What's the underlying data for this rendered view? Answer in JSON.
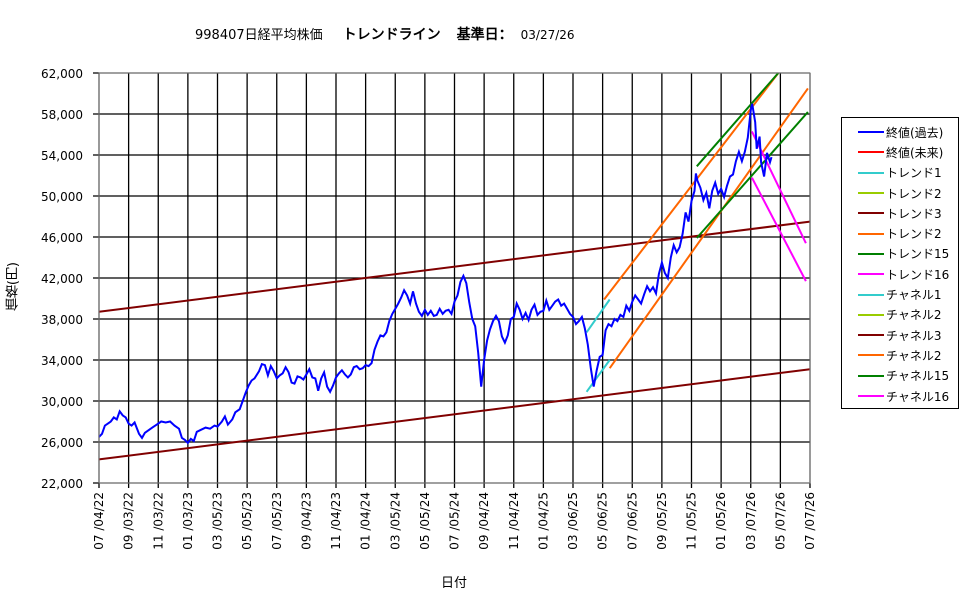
{
  "title": {
    "code_name": "998407日経平均株価",
    "chart_kind": "トレンドライン",
    "base_date_label": "基準日：",
    "base_date": "03/27/26"
  },
  "axes": {
    "ylabel": "価格(円)",
    "xlabel": "日付"
  },
  "colors": {
    "close_past": "#0000FF",
    "close_future": "#FF0000",
    "trend1": "#33CCCC",
    "trend2_lime": "#99CC00",
    "trend3": "#800000",
    "trend2_orange": "#FF6600",
    "trend15": "#008000",
    "trend16": "#FF00FF",
    "grid": "#000000",
    "plot_border": "#808080"
  },
  "legend": {
    "items": [
      {
        "label": "終値(過去)",
        "color": "#0000FF"
      },
      {
        "label": "終値(未来)",
        "color": "#FF0000"
      },
      {
        "label": "トレンド1",
        "color": "#33CCCC"
      },
      {
        "label": "トレンド2",
        "color": "#99CC00"
      },
      {
        "label": "トレンド3",
        "color": "#800000"
      },
      {
        "label": "トレンド2",
        "color": "#FF6600"
      },
      {
        "label": "トレンド15",
        "color": "#008000"
      },
      {
        "label": "トレンド16",
        "color": "#FF00FF"
      },
      {
        "label": "チャネル1",
        "color": "#33CCCC"
      },
      {
        "label": "チャネル2",
        "color": "#99CC00"
      },
      {
        "label": "チャネル3",
        "color": "#800000"
      },
      {
        "label": "チャネル2",
        "color": "#FF6600"
      },
      {
        "label": "チャネル15",
        "color": "#008000"
      },
      {
        "label": "チャネル16",
        "color": "#FF00FF"
      }
    ]
  },
  "chart_data": {
    "type": "line",
    "title": "998407日経平均株価 トレンドライン 基準日： 03/27/26",
    "xlabel": "日付",
    "ylabel": "価格(円)",
    "ylim": [
      22000,
      62000
    ],
    "yticks": [
      22000,
      26000,
      30000,
      34000,
      38000,
      42000,
      46000,
      50000,
      54000,
      58000,
      62000
    ],
    "ytick_labels": [
      "22,000",
      "26,000",
      "30,000",
      "34,000",
      "38,000",
      "42,000",
      "46,000",
      "50,000",
      "54,000",
      "58,000",
      "62,000"
    ],
    "categories": [
      "07/04/22",
      "09/03/22",
      "11/03/22",
      "01/03/23",
      "03/05/23",
      "05/05/23",
      "07/05/23",
      "09/04/23",
      "11/04/23",
      "01/04/24",
      "03/05/24",
      "05/05/24",
      "07/05/24",
      "09/04/24",
      "11/04/24",
      "01/04/25",
      "03/06/25",
      "05/06/25",
      "07/06/25",
      "09/05/25",
      "11/05/25",
      "01/05/26",
      "03/07/26",
      "05/07/26",
      "07/07/26"
    ],
    "grid": true,
    "legend_position": "right",
    "x_index_unit": "index of category tick (0 = 07/04/22, 24 = 07/07/26)",
    "series": [
      {
        "name": "終値(過去)",
        "color": "#0000FF",
        "width": 2,
        "points": [
          [
            0,
            26500
          ],
          [
            0.1,
            26800
          ],
          [
            0.2,
            27600
          ],
          [
            0.3,
            27800
          ],
          [
            0.4,
            28000
          ],
          [
            0.5,
            28400
          ],
          [
            0.6,
            28200
          ],
          [
            0.7,
            29000
          ],
          [
            0.8,
            28600
          ],
          [
            0.9,
            28400
          ],
          [
            1.0,
            27800
          ],
          [
            1.1,
            27600
          ],
          [
            1.2,
            27900
          ],
          [
            1.35,
            26800
          ],
          [
            1.45,
            26400
          ],
          [
            1.55,
            26900
          ],
          [
            1.65,
            27100
          ],
          [
            1.8,
            27400
          ],
          [
            1.95,
            27700
          ],
          [
            2.1,
            28000
          ],
          [
            2.25,
            27900
          ],
          [
            2.4,
            28000
          ],
          [
            2.55,
            27600
          ],
          [
            2.7,
            27300
          ],
          [
            2.8,
            26400
          ],
          [
            2.9,
            26200
          ],
          [
            3.0,
            25900
          ],
          [
            3.1,
            26300
          ],
          [
            3.2,
            26100
          ],
          [
            3.3,
            27000
          ],
          [
            3.45,
            27200
          ],
          [
            3.6,
            27400
          ],
          [
            3.75,
            27300
          ],
          [
            3.9,
            27600
          ],
          [
            4.0,
            27500
          ],
          [
            4.15,
            28000
          ],
          [
            4.25,
            28500
          ],
          [
            4.35,
            27700
          ],
          [
            4.5,
            28200
          ],
          [
            4.6,
            28900
          ],
          [
            4.75,
            29200
          ],
          [
            4.85,
            30000
          ],
          [
            4.95,
            30800
          ],
          [
            5.05,
            31500
          ],
          [
            5.15,
            32000
          ],
          [
            5.25,
            32200
          ],
          [
            5.4,
            32900
          ],
          [
            5.5,
            33600
          ],
          [
            5.6,
            33500
          ],
          [
            5.7,
            32500
          ],
          [
            5.8,
            33400
          ],
          [
            5.9,
            32900
          ],
          [
            6.0,
            32200
          ],
          [
            6.1,
            32500
          ],
          [
            6.2,
            32700
          ],
          [
            6.3,
            33300
          ],
          [
            6.4,
            32800
          ],
          [
            6.5,
            31800
          ],
          [
            6.6,
            31700
          ],
          [
            6.7,
            32400
          ],
          [
            6.8,
            32300
          ],
          [
            6.9,
            32100
          ],
          [
            7.0,
            32600
          ],
          [
            7.1,
            33100
          ],
          [
            7.2,
            32300
          ],
          [
            7.3,
            32200
          ],
          [
            7.4,
            31000
          ],
          [
            7.5,
            32200
          ],
          [
            7.6,
            32800
          ],
          [
            7.7,
            31400
          ],
          [
            7.8,
            30900
          ],
          [
            7.9,
            31500
          ],
          [
            8.0,
            32300
          ],
          [
            8.1,
            32700
          ],
          [
            8.2,
            33000
          ],
          [
            8.3,
            32600
          ],
          [
            8.4,
            32300
          ],
          [
            8.5,
            32600
          ],
          [
            8.6,
            33300
          ],
          [
            8.7,
            33400
          ],
          [
            8.8,
            33100
          ],
          [
            8.9,
            33200
          ],
          [
            9.0,
            33500
          ],
          [
            9.1,
            33400
          ],
          [
            9.2,
            33700
          ],
          [
            9.3,
            35000
          ],
          [
            9.4,
            35800
          ],
          [
            9.5,
            36400
          ],
          [
            9.6,
            36300
          ],
          [
            9.7,
            36700
          ],
          [
            9.8,
            37800
          ],
          [
            9.9,
            38500
          ],
          [
            10.0,
            39000
          ],
          [
            10.1,
            39500
          ],
          [
            10.2,
            40100
          ],
          [
            10.3,
            40800
          ],
          [
            10.4,
            40300
          ],
          [
            10.5,
            39500
          ],
          [
            10.6,
            40700
          ],
          [
            10.7,
            39500
          ],
          [
            10.8,
            38700
          ],
          [
            10.9,
            38300
          ],
          [
            11.0,
            38900
          ],
          [
            11.1,
            38400
          ],
          [
            11.2,
            38800
          ],
          [
            11.3,
            38300
          ],
          [
            11.4,
            38400
          ],
          [
            11.5,
            39000
          ],
          [
            11.6,
            38500
          ],
          [
            11.7,
            38800
          ],
          [
            11.8,
            38900
          ],
          [
            11.9,
            38500
          ],
          [
            12.0,
            39700
          ],
          [
            12.1,
            40300
          ],
          [
            12.2,
            41600
          ],
          [
            12.3,
            42200
          ],
          [
            12.4,
            41500
          ],
          [
            12.5,
            39600
          ],
          [
            12.6,
            38000
          ],
          [
            12.7,
            37300
          ],
          [
            12.8,
            34700
          ],
          [
            12.9,
            31400
          ],
          [
            13.0,
            34000
          ],
          [
            13.1,
            35900
          ],
          [
            13.2,
            37000
          ],
          [
            13.3,
            37800
          ],
          [
            13.4,
            38300
          ],
          [
            13.5,
            37800
          ],
          [
            13.6,
            36300
          ],
          [
            13.7,
            35700
          ],
          [
            13.8,
            36400
          ],
          [
            13.9,
            38000
          ],
          [
            14.0,
            38200
          ],
          [
            14.1,
            39500
          ],
          [
            14.2,
            38900
          ],
          [
            14.3,
            38000
          ],
          [
            14.4,
            38600
          ],
          [
            14.5,
            37900
          ],
          [
            14.6,
            38900
          ],
          [
            14.7,
            39400
          ],
          [
            14.8,
            38400
          ],
          [
            14.9,
            38700
          ],
          [
            15.0,
            38800
          ],
          [
            15.1,
            39800
          ],
          [
            15.2,
            38900
          ],
          [
            15.3,
            39300
          ],
          [
            15.4,
            39700
          ],
          [
            15.5,
            39900
          ],
          [
            15.6,
            39300
          ],
          [
            15.7,
            39500
          ],
          [
            15.8,
            39000
          ],
          [
            15.9,
            38500
          ],
          [
            16.0,
            38200
          ],
          [
            16.1,
            37500
          ],
          [
            16.2,
            37800
          ],
          [
            16.3,
            38200
          ],
          [
            16.4,
            37100
          ],
          [
            16.5,
            35500
          ],
          [
            16.6,
            33200
          ],
          [
            16.7,
            31400
          ],
          [
            16.8,
            33000
          ],
          [
            16.9,
            34300
          ],
          [
            17.0,
            34500
          ],
          [
            17.1,
            36900
          ],
          [
            17.2,
            37500
          ],
          [
            17.3,
            37300
          ],
          [
            17.4,
            38000
          ],
          [
            17.5,
            37800
          ],
          [
            17.6,
            38400
          ],
          [
            17.7,
            38200
          ],
          [
            17.8,
            39300
          ],
          [
            17.9,
            38800
          ],
          [
            18.0,
            39700
          ],
          [
            18.1,
            40300
          ],
          [
            18.2,
            39900
          ],
          [
            18.3,
            39500
          ],
          [
            18.4,
            40400
          ],
          [
            18.5,
            41200
          ],
          [
            18.6,
            40700
          ],
          [
            18.7,
            41100
          ],
          [
            18.8,
            40500
          ],
          [
            18.9,
            42400
          ],
          [
            19.0,
            43500
          ],
          [
            19.1,
            42500
          ],
          [
            19.2,
            42000
          ],
          [
            19.3,
            44000
          ],
          [
            19.4,
            45200
          ],
          [
            19.5,
            44500
          ],
          [
            19.6,
            45000
          ],
          [
            19.7,
            46300
          ],
          [
            19.8,
            48400
          ],
          [
            19.9,
            47500
          ],
          [
            20.0,
            49500
          ],
          [
            20.1,
            50500
          ],
          [
            20.15,
            52200
          ],
          [
            20.2,
            51500
          ],
          [
            20.3,
            50800
          ],
          [
            20.4,
            49600
          ],
          [
            20.5,
            50300
          ],
          [
            20.6,
            48800
          ],
          [
            20.7,
            50500
          ],
          [
            20.8,
            51300
          ],
          [
            20.9,
            50200
          ],
          [
            21.0,
            50700
          ],
          [
            21.1,
            49900
          ],
          [
            21.2,
            51000
          ],
          [
            21.3,
            51900
          ],
          [
            21.4,
            52100
          ],
          [
            21.5,
            53400
          ],
          [
            21.6,
            54300
          ],
          [
            21.7,
            53400
          ],
          [
            21.8,
            54300
          ],
          [
            21.9,
            55700
          ],
          [
            22.0,
            58400
          ],
          [
            22.05,
            59000
          ],
          [
            22.15,
            57200
          ],
          [
            22.2,
            54600
          ],
          [
            22.3,
            55800
          ],
          [
            22.35,
            53300
          ],
          [
            22.45,
            51900
          ],
          [
            22.55,
            54200
          ],
          [
            22.65,
            53300
          ],
          [
            22.7,
            53800
          ]
        ]
      },
      {
        "name": "トレンド3",
        "color": "#800000",
        "width": 2,
        "points": [
          [
            0,
            38700
          ],
          [
            24,
            47500
          ]
        ]
      },
      {
        "name": "チャネル3",
        "color": "#800000",
        "width": 2,
        "points": [
          [
            0,
            24300
          ],
          [
            24,
            33100
          ]
        ]
      },
      {
        "name": "トレンド1",
        "color": "#33CCCC",
        "width": 2,
        "points": [
          [
            16.46,
            36700
          ],
          [
            17.24,
            39900
          ]
        ]
      },
      {
        "name": "チャネル1",
        "color": "#33CCCC",
        "width": 2,
        "points": [
          [
            16.46,
            30900
          ],
          [
            17.24,
            34000
          ]
        ]
      },
      {
        "name": "トレンド2",
        "color": "#FF6600",
        "width": 2,
        "points": [
          [
            17.05,
            39900
          ],
          [
            22.93,
            62000
          ]
        ]
      },
      {
        "name": "チャネル2",
        "color": "#FF6600",
        "width": 2,
        "points": [
          [
            17.24,
            33200
          ],
          [
            23.93,
            60500
          ]
        ]
      },
      {
        "name": "トレンド15",
        "color": "#008000",
        "width": 2,
        "points": [
          [
            20.18,
            52900
          ],
          [
            22.93,
            62000
          ]
        ]
      },
      {
        "name": "チャネル15",
        "color": "#008000",
        "width": 2,
        "points": [
          [
            20.18,
            45900
          ],
          [
            23.93,
            58200
          ]
        ]
      },
      {
        "name": "トレンド16",
        "color": "#FF00FF",
        "width": 2,
        "points": [
          [
            22.04,
            56300
          ],
          [
            23.86,
            45400
          ]
        ]
      },
      {
        "name": "チャネル16",
        "color": "#FF00FF",
        "width": 2,
        "points": [
          [
            22.04,
            51800
          ],
          [
            23.86,
            41700
          ]
        ]
      }
    ]
  }
}
